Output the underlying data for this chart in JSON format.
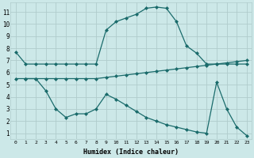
{
  "xlabel": "Humidex (Indice chaleur)",
  "background_color": "#cce8e8",
  "grid_color": "#b0cccc",
  "line_color": "#1a6b6b",
  "xlim": [
    -0.5,
    23.5
  ],
  "ylim": [
    0.5,
    11.8
  ],
  "xticks": [
    0,
    1,
    2,
    3,
    4,
    5,
    6,
    7,
    8,
    9,
    10,
    11,
    12,
    13,
    14,
    15,
    16,
    17,
    18,
    19,
    20,
    21,
    22,
    23
  ],
  "yticks": [
    1,
    2,
    3,
    4,
    5,
    6,
    7,
    8,
    9,
    10,
    11
  ],
  "line1_x": [
    0,
    1,
    2,
    3,
    4,
    5,
    6,
    7,
    8,
    9,
    10,
    11,
    12,
    13,
    14,
    15,
    16,
    17,
    18,
    19,
    20,
    21,
    22,
    23
  ],
  "line1_y": [
    7.7,
    6.7,
    6.7,
    6.7,
    6.7,
    6.7,
    6.7,
    6.7,
    6.7,
    9.5,
    10.2,
    10.5,
    10.8,
    11.3,
    11.4,
    11.3,
    10.2,
    8.2,
    7.6,
    6.7,
    6.7,
    6.7,
    6.7,
    6.7
  ],
  "line2_x": [
    0,
    1,
    2,
    3,
    4,
    5,
    6,
    7,
    8,
    9,
    10,
    11,
    12,
    13,
    14,
    15,
    16,
    17,
    18,
    19,
    20,
    21,
    22,
    23
  ],
  "line2_y": [
    5.5,
    5.5,
    5.5,
    5.5,
    5.5,
    5.5,
    5.5,
    5.5,
    5.5,
    5.6,
    5.7,
    5.8,
    5.9,
    6.0,
    6.1,
    6.2,
    6.3,
    6.4,
    6.5,
    6.6,
    6.7,
    6.8,
    6.9,
    7.0
  ],
  "line3_x": [
    1,
    2,
    3,
    4,
    5,
    6,
    7,
    8,
    9,
    10,
    11,
    12,
    13,
    14,
    15,
    16,
    17,
    18,
    19,
    20,
    21,
    22,
    23
  ],
  "line3_y": [
    5.5,
    5.5,
    4.5,
    3.0,
    2.3,
    2.6,
    2.6,
    3.0,
    4.2,
    3.8,
    3.3,
    2.8,
    2.3,
    2.0,
    1.7,
    1.5,
    1.3,
    1.1,
    1.0,
    5.2,
    3.0,
    1.5,
    0.8
  ],
  "marker": "D",
  "markersize": 2.0,
  "linewidth": 0.9
}
